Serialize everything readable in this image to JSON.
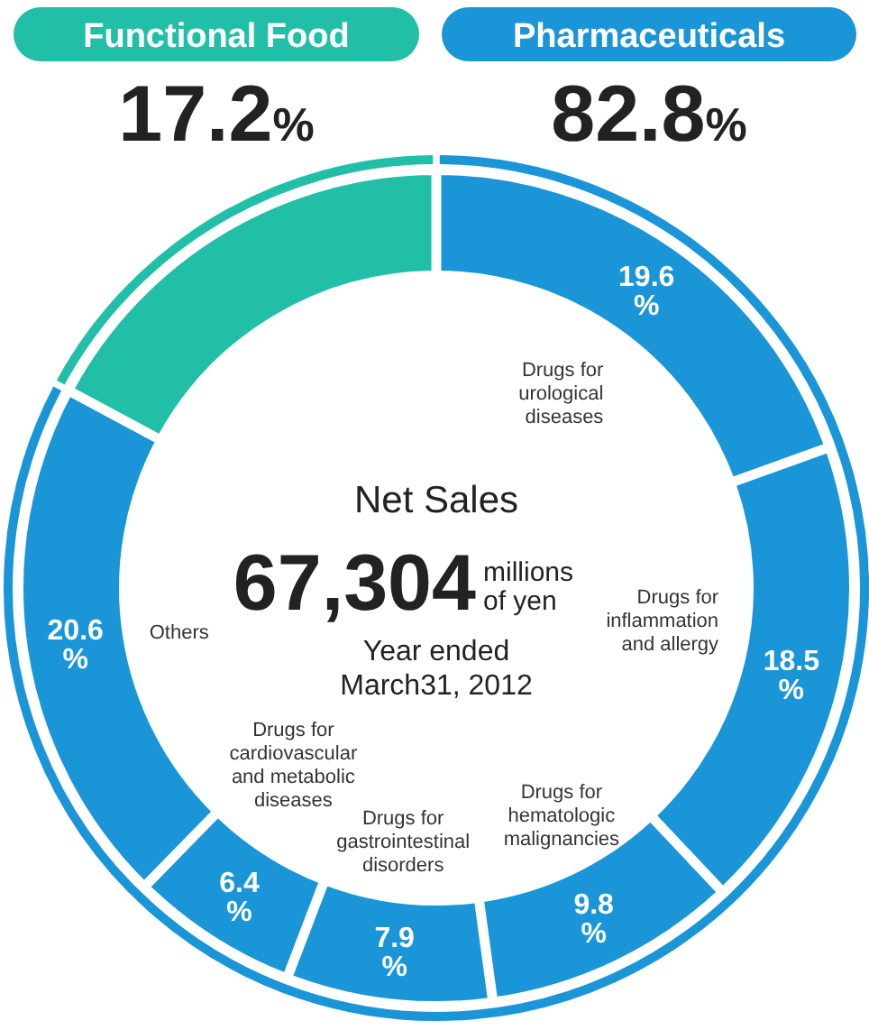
{
  "chart_data": {
    "type": "donut",
    "categories": [
      "Drugs for urological diseases",
      "Drugs for inflammation and allergy",
      "Drugs for hematologic malignancies",
      "Drugs for gastrointestinal disorders",
      "Drugs for cardiovascular and metabolic diseases",
      "Others",
      null
    ],
    "values": [
      19.6,
      18.5,
      9.8,
      7.9,
      6.4,
      20.6,
      17.2
    ],
    "colors": [
      "#1a96d8",
      "#1a96d8",
      "#1a96d8",
      "#1a96d8",
      "#1a96d8",
      "#1a96d8",
      "#22bfa8"
    ],
    "value_labels": [
      "19.6%",
      "18.5%",
      "9.8%",
      "7.9%",
      "6.4%",
      "20.6%",
      null
    ],
    "legend": false,
    "annotations": [
      "Functional Food",
      "17.2%",
      "Pharmaceuticals",
      "82.8%",
      "Net Sales",
      "67,304",
      "millions of yen",
      "Year ended March31, 2012"
    ]
  }
}
